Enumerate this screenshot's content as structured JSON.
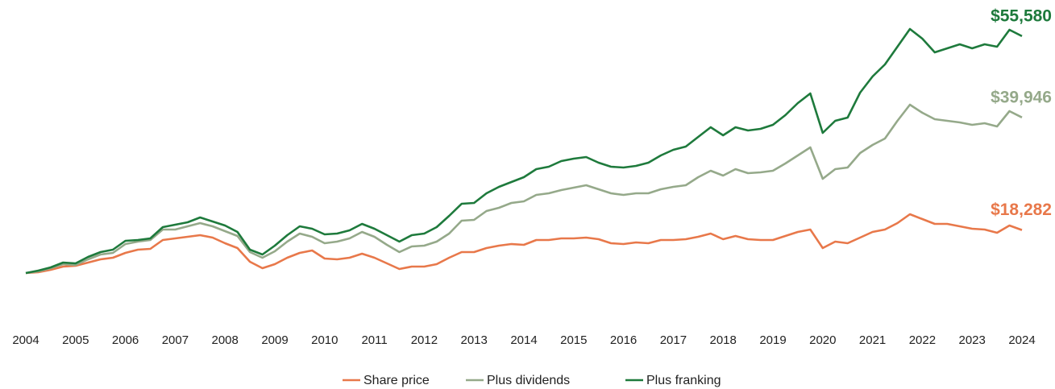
{
  "chart_data": {
    "type": "line",
    "x": [
      2004,
      2004.25,
      2004.5,
      2004.75,
      2005,
      2005.25,
      2005.5,
      2005.75,
      2006,
      2006.25,
      2006.5,
      2006.75,
      2007,
      2007.25,
      2007.5,
      2007.75,
      2008,
      2008.25,
      2008.5,
      2008.75,
      2009,
      2009.25,
      2009.5,
      2009.75,
      2010,
      2010.25,
      2010.5,
      2010.75,
      2011,
      2011.25,
      2011.5,
      2011.75,
      2012,
      2012.25,
      2012.5,
      2012.75,
      2013,
      2013.25,
      2013.5,
      2013.75,
      2014,
      2014.25,
      2014.5,
      2014.75,
      2015,
      2015.25,
      2015.5,
      2015.75,
      2016,
      2016.25,
      2016.5,
      2016.75,
      2017,
      2017.25,
      2017.5,
      2017.75,
      2018,
      2018.25,
      2018.5,
      2018.75,
      2019,
      2019.25,
      2019.5,
      2019.75,
      2020,
      2020.25,
      2020.5,
      2020.75,
      2021,
      2021.25,
      2021.5,
      2021.75,
      2022,
      2022.25,
      2022.5,
      2022.75,
      2023,
      2023.25,
      2023.5,
      2023.75,
      2024
    ],
    "xlim": [
      2004,
      2024
    ],
    "xticks": [
      2004,
      2005,
      2006,
      2007,
      2008,
      2009,
      2010,
      2011,
      2012,
      2013,
      2014,
      2015,
      2016,
      2017,
      2018,
      2019,
      2020,
      2021,
      2022,
      2023,
      2024
    ],
    "series": [
      {
        "name": "Share price",
        "color": "#e8784a",
        "values": [
          10000,
          10155,
          10620,
          11240,
          11395,
          12015,
          12635,
          12945,
          13875,
          14495,
          14650,
          16355,
          16665,
          16975,
          17285,
          16820,
          15735,
          14805,
          12170,
          10930,
          11705,
          12945,
          13875,
          14340,
          12790,
          12635,
          12945,
          13720,
          12945,
          11860,
          10775,
          11240,
          11240,
          11705,
          12945,
          14030,
          14030,
          14805,
          15270,
          15580,
          15425,
          16355,
          16355,
          16665,
          16665,
          16820,
          16510,
          15735,
          15580,
          15890,
          15735,
          16355,
          16355,
          16510,
          16975,
          17595,
          16510,
          17130,
          16510,
          16355,
          16355,
          17130,
          17905,
          18370,
          14805,
          16045,
          15735,
          16820,
          17905,
          18370,
          19610,
          21315,
          20385,
          19455,
          19455,
          18990,
          18525,
          18370,
          17750,
          19145,
          18282
        ],
        "value_labels": [
          null,
          null,
          null,
          null,
          null,
          null,
          null,
          null,
          null,
          null,
          null,
          null,
          null,
          null,
          null,
          null,
          null,
          null,
          null,
          null,
          null,
          null,
          null,
          null,
          null,
          null,
          null,
          null,
          null,
          null,
          null,
          null,
          null,
          null,
          null,
          null,
          null,
          null,
          null,
          null,
          null,
          null,
          null,
          null,
          null,
          null,
          null,
          null,
          null,
          null,
          null,
          null,
          null,
          null,
          null,
          null,
          null,
          null,
          null,
          null,
          null,
          null,
          null,
          null,
          null,
          null,
          null,
          null,
          null,
          null,
          null,
          null,
          null,
          null,
          null,
          null,
          null,
          null,
          null,
          null,
          "$18,282"
        ]
      },
      {
        "name": "Plus dividends",
        "color": "#95a98a",
        "values": [
          10000,
          10310,
          10930,
          11705,
          11550,
          12635,
          13565,
          13875,
          15580,
          16045,
          16355,
          18370,
          18370,
          18990,
          19610,
          18990,
          18060,
          17130,
          14030,
          12945,
          14185,
          16045,
          17595,
          16975,
          15735,
          16045,
          16665,
          17905,
          16975,
          15425,
          14030,
          15115,
          15270,
          16045,
          17595,
          20075,
          20230,
          21935,
          22555,
          23485,
          23795,
          25035,
          25345,
          25965,
          26430,
          26895,
          26120,
          25345,
          25035,
          25345,
          25345,
          26120,
          26585,
          26895,
          28445,
          29685,
          28755,
          29995,
          29220,
          29375,
          29685,
          31080,
          32630,
          34180,
          28135,
          29995,
          30305,
          33095,
          34645,
          35885,
          39295,
          42395,
          40845,
          39605,
          39295,
          38985,
          38520,
          38830,
          38210,
          41155,
          39946
        ],
        "value_labels": [
          null,
          null,
          null,
          null,
          null,
          null,
          null,
          null,
          null,
          null,
          null,
          null,
          null,
          null,
          null,
          null,
          null,
          null,
          null,
          null,
          null,
          null,
          null,
          null,
          null,
          null,
          null,
          null,
          null,
          null,
          null,
          null,
          null,
          null,
          null,
          null,
          null,
          null,
          null,
          null,
          null,
          null,
          null,
          null,
          null,
          null,
          null,
          null,
          null,
          null,
          null,
          null,
          null,
          null,
          null,
          null,
          null,
          null,
          null,
          null,
          null,
          null,
          null,
          null,
          null,
          null,
          null,
          null,
          null,
          null,
          null,
          null,
          null,
          null,
          null,
          null,
          null,
          null,
          null,
          null,
          "$39,946"
        ]
      },
      {
        "name": "Plus franking",
        "color": "#1e7a3c",
        "values": [
          10000,
          10465,
          11085,
          12015,
          11860,
          13100,
          14030,
          14495,
          16200,
          16355,
          16665,
          18835,
          19300,
          19765,
          20695,
          19920,
          19145,
          17905,
          14495,
          13565,
          15270,
          17285,
          18990,
          18525,
          17440,
          17595,
          18215,
          19455,
          18525,
          17285,
          16045,
          17285,
          17595,
          18835,
          21005,
          23330,
          23485,
          25345,
          26585,
          27515,
          28445,
          29995,
          30460,
          31545,
          32010,
          32320,
          31235,
          30460,
          30305,
          30615,
          31235,
          32630,
          33715,
          34335,
          36195,
          38055,
          36505,
          38055,
          37435,
          37745,
          38520,
          40380,
          42705,
          44565,
          36970,
          39295,
          39915,
          44720,
          47820,
          50145,
          53555,
          56965,
          55105,
          52470,
          53245,
          54020,
          53245,
          54020,
          53555,
          56810,
          55580
        ],
        "value_labels": [
          null,
          null,
          null,
          null,
          null,
          null,
          null,
          null,
          null,
          null,
          null,
          null,
          null,
          null,
          null,
          null,
          null,
          null,
          null,
          null,
          null,
          null,
          null,
          null,
          null,
          null,
          null,
          null,
          null,
          null,
          null,
          null,
          null,
          null,
          null,
          null,
          null,
          null,
          null,
          null,
          null,
          null,
          null,
          null,
          null,
          null,
          null,
          null,
          null,
          null,
          null,
          null,
          null,
          null,
          null,
          null,
          null,
          null,
          null,
          null,
          null,
          null,
          null,
          null,
          null,
          null,
          null,
          null,
          null,
          null,
          null,
          null,
          null,
          null,
          null,
          null,
          null,
          null,
          null,
          null,
          "$55,580"
        ]
      }
    ]
  }
}
